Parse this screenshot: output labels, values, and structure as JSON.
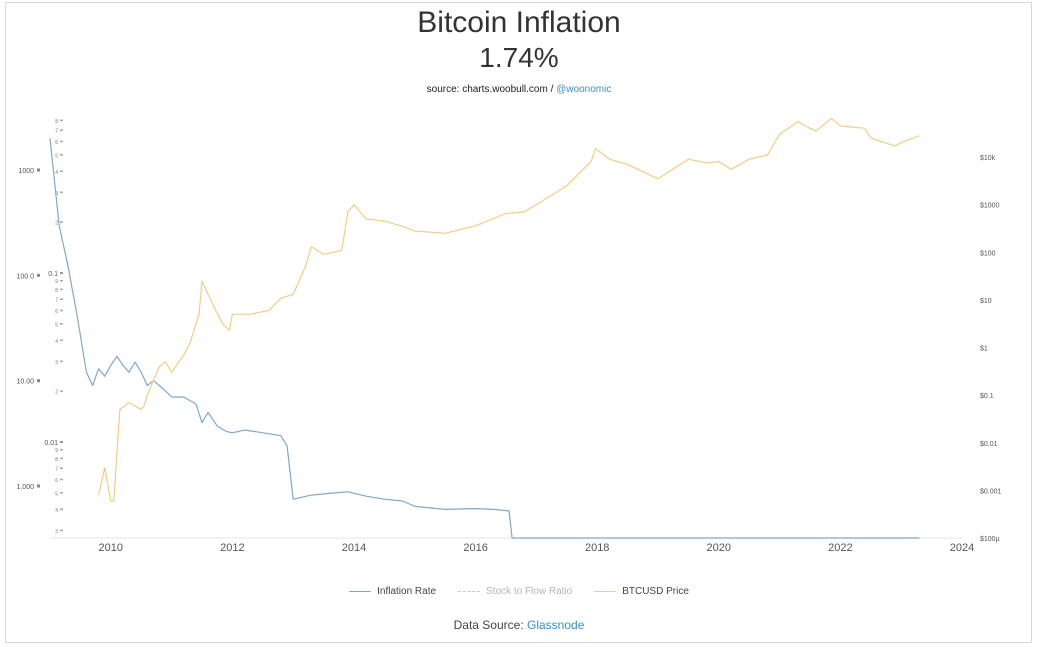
{
  "title": "Bitcoin Inflation",
  "subtitle": "1.74%",
  "source": {
    "prefix": "source: charts.woobull.com /",
    "handle": "@woonomic"
  },
  "footer": {
    "prefix": "Data Source:",
    "link": "Glassnode"
  },
  "legend": [
    {
      "label": "Inflation Rate",
      "color": "#7fa8c9",
      "style": "solid",
      "active": true
    },
    {
      "label": "Stock to Flow Ratio",
      "color": "#c8c8c8",
      "style": "dashed",
      "active": false
    },
    {
      "label": "BTCUSD Price",
      "color": "#f2cc85",
      "style": "solid",
      "active": true
    }
  ],
  "chart_data": {
    "type": "line",
    "x_axis": {
      "ticks": [
        "2010",
        "2012",
        "2014",
        "2016",
        "2018",
        "2020",
        "2022",
        "2024"
      ],
      "range": [
        2009.0,
        2024.0
      ]
    },
    "y_left_axis": {
      "scale": "log",
      "ticks": [
        "1000",
        "100.0",
        "10.00",
        "1.000"
      ],
      "range_percent": [
        0.3,
        3000
      ]
    },
    "y_stock_axis": {
      "scale": "log",
      "major_ticks": [
        "0.1",
        "0.01"
      ]
    },
    "y_right_axis": {
      "scale": "log",
      "ticks": [
        "$10k",
        "$1000",
        "$100",
        "$10",
        "$1",
        "$0.1",
        "$0.01",
        "$0.001",
        "$100µ"
      ],
      "range_usd": [
        0.0001,
        30000
      ]
    },
    "grid": false,
    "legend_position": "bottom",
    "series": [
      {
        "name": "Inflation Rate",
        "axis": "left",
        "color": "#7fa8c9",
        "x": [
          2009.0,
          2009.15,
          2009.3,
          2009.45,
          2009.55,
          2009.6,
          2009.7,
          2009.8,
          2009.9,
          2010.0,
          2010.1,
          2010.2,
          2010.3,
          2010.4,
          2010.5,
          2010.6,
          2010.7,
          2010.8,
          2010.9,
          2011.0,
          2011.2,
          2011.4,
          2011.5,
          2011.6,
          2011.75,
          2011.9,
          2012.0,
          2012.2,
          2012.5,
          2012.8,
          2012.9,
          2013.0,
          2013.3,
          2013.6,
          2013.9,
          2014.2,
          2014.5,
          2014.8,
          2015.0,
          2015.5,
          2016.0,
          2016.3,
          2016.55,
          2016.6,
          2017.0,
          2017.5,
          2018.0,
          2018.5,
          2019.0,
          2019.5,
          2020.0,
          2020.4,
          2020.45,
          2020.7,
          2021.0,
          2021.3,
          2021.5,
          2021.65,
          2022.0,
          2022.5,
          2023.0,
          2023.3
        ],
        "values": [
          2000,
          300,
          120,
          40,
          18,
          12,
          9,
          13,
          11,
          14,
          17,
          14,
          12,
          15,
          12,
          9,
          10,
          9,
          8,
          7,
          7,
          6,
          4,
          5,
          3.7,
          3.3,
          3.2,
          3.4,
          3.2,
          3.0,
          2.4,
          0.75,
          0.82,
          0.85,
          0.88,
          0.8,
          0.75,
          0.72,
          0.64,
          0.6,
          0.61,
          0.6,
          0.58,
          0.23,
          0.24,
          0.23,
          0.22,
          0.21,
          0.2,
          0.21,
          0.2,
          0.2,
          0.085,
          0.088,
          0.085,
          0.08,
          0.07,
          0.087,
          0.085,
          0.083,
          0.085,
          0.083
        ]
      },
      {
        "name": "BTCUSD Price",
        "axis": "right",
        "color": "#f2cc85",
        "x": [
          2009.8,
          2009.9,
          2010.0,
          2010.05,
          2010.1,
          2010.15,
          2010.3,
          2010.5,
          2010.55,
          2010.6,
          2010.8,
          2010.9,
          2011.0,
          2011.2,
          2011.3,
          2011.45,
          2011.5,
          2011.7,
          2011.85,
          2011.95,
          2012.0,
          2012.3,
          2012.6,
          2012.8,
          2013.0,
          2013.2,
          2013.3,
          2013.5,
          2013.8,
          2013.9,
          2014.0,
          2014.2,
          2014.5,
          2014.8,
          2015.0,
          2015.5,
          2016.0,
          2016.5,
          2016.8,
          2017.0,
          2017.5,
          2017.9,
          2017.97,
          2018.2,
          2018.5,
          2018.9,
          2019.0,
          2019.5,
          2019.8,
          2020.0,
          2020.2,
          2020.5,
          2020.8,
          2021.0,
          2021.3,
          2021.5,
          2021.6,
          2021.85,
          2022.0,
          2022.4,
          2022.5,
          2022.9,
          2023.0,
          2023.3
        ],
        "values": [
          0.0008,
          0.003,
          0.0006,
          0.0006,
          0.006,
          0.05,
          0.07,
          0.05,
          0.06,
          0.1,
          0.4,
          0.5,
          0.3,
          0.7,
          1.2,
          5,
          25,
          7,
          3,
          2.3,
          5,
          5,
          6,
          11,
          13,
          50,
          130,
          90,
          110,
          700,
          1000,
          500,
          450,
          350,
          280,
          250,
          360,
          650,
          700,
          1000,
          2500,
          8000,
          15000,
          9000,
          7000,
          4000,
          3500,
          9000,
          7500,
          8000,
          5500,
          9000,
          11000,
          30000,
          55000,
          40000,
          35000,
          65000,
          45000,
          40000,
          25000,
          17000,
          20000,
          28000
        ]
      },
      {
        "name": "Stock to Flow Ratio",
        "axis": "stock",
        "color": "#c8c8c8",
        "hidden": true,
        "x": [],
        "values": []
      }
    ]
  }
}
